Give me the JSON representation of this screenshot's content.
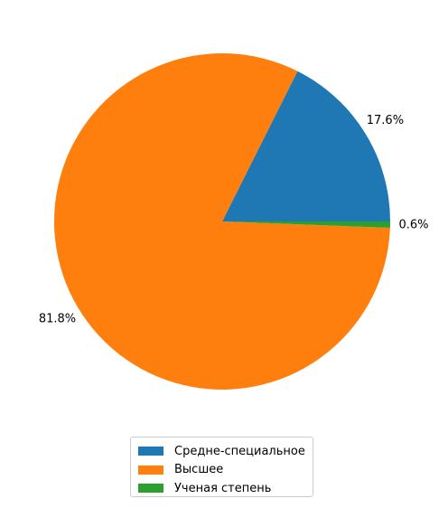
{
  "chart_data": {
    "type": "pie",
    "categories": [
      "Средне-специальное",
      "Высшее",
      "Ученая степень"
    ],
    "values": [
      17.6,
      81.8,
      0.6
    ],
    "labels": [
      "17.6%",
      "81.8%",
      "0.6%"
    ],
    "colors": [
      "#1f77b4",
      "#ff7f0e",
      "#2ca02c"
    ],
    "start_angle_deg": 0,
    "direction": "counterclockwise",
    "legend_position": "bottom-center",
    "title": ""
  }
}
